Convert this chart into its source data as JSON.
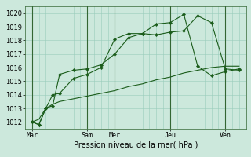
{
  "title": "",
  "xlabel": "Pression niveau de la mer( hPa )",
  "ylabel": "",
  "ylim": [
    1011.5,
    1020.5
  ],
  "yticks": [
    1012,
    1013,
    1014,
    1015,
    1016,
    1017,
    1018,
    1019,
    1020
  ],
  "bg_color": "#cce8dc",
  "grid_color": "#99ccbb",
  "line_color": "#1a5c1a",
  "vline_color": "#336633",
  "x_day_labels": [
    "Mar",
    "Sam",
    "Mer",
    "Jeu",
    "Ven"
  ],
  "x_day_positions": [
    0,
    48,
    72,
    120,
    168
  ],
  "xlim": [
    -6,
    186
  ],
  "line1_x": [
    0,
    6,
    12,
    18,
    24,
    36,
    48,
    60,
    72,
    84,
    96,
    108,
    120,
    132,
    144,
    156,
    168,
    180
  ],
  "line1_y": [
    1012.0,
    1011.8,
    1013.0,
    1013.2,
    1015.5,
    1015.8,
    1015.9,
    1016.2,
    1017.0,
    1018.2,
    1018.5,
    1018.4,
    1018.6,
    1018.7,
    1019.8,
    1019.3,
    1015.9,
    1015.8
  ],
  "line2_x": [
    0,
    6,
    12,
    18,
    24,
    36,
    48,
    60,
    72,
    84,
    96,
    108,
    120,
    132,
    144,
    156,
    168,
    180
  ],
  "line2_y": [
    1012.0,
    1011.8,
    1013.0,
    1014.0,
    1014.1,
    1015.2,
    1015.5,
    1016.0,
    1018.1,
    1018.5,
    1018.5,
    1019.2,
    1019.3,
    1019.9,
    1016.1,
    1015.4,
    1015.7,
    1015.9
  ],
  "line3_x": [
    0,
    6,
    12,
    18,
    24,
    36,
    48,
    60,
    72,
    84,
    96,
    108,
    120,
    132,
    144,
    156,
    168,
    180
  ],
  "line3_y": [
    1012.0,
    1012.2,
    1013.0,
    1013.3,
    1013.5,
    1013.7,
    1013.9,
    1014.1,
    1014.3,
    1014.6,
    1014.8,
    1015.1,
    1015.3,
    1015.6,
    1015.8,
    1016.0,
    1016.1,
    1016.1
  ]
}
